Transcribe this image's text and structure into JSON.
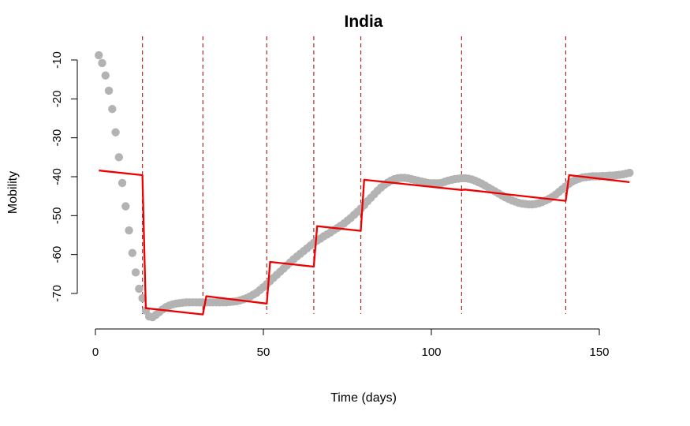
{
  "chart_data": {
    "type": "scatter",
    "title": "India",
    "xlabel": "Time (days)",
    "ylabel": "Mobility",
    "xlim": [
      0,
      150
    ],
    "ylim": [
      -75,
      -10
    ],
    "xticks": [
      0,
      50,
      100,
      150
    ],
    "yticks": [
      -70,
      -60,
      -50,
      -40,
      -30,
      -20,
      -10
    ],
    "colors": {
      "points": "#b3b3b3",
      "fit": "#ee0000",
      "breakpoints": "#a52a2a"
    },
    "breakpoints": [
      14,
      32,
      51,
      65,
      79,
      109,
      140
    ],
    "series": [
      {
        "type": "scatter",
        "x": [
          1,
          2,
          3,
          4,
          5,
          6,
          7,
          8,
          9,
          10,
          11,
          12,
          13,
          14,
          15,
          16,
          17,
          18,
          19,
          20,
          21,
          22,
          23,
          24,
          25,
          26,
          27,
          28,
          29,
          30,
          31,
          32,
          33,
          34,
          35,
          36,
          37,
          38,
          39,
          40,
          41,
          42,
          43,
          44,
          45,
          46,
          47,
          48,
          49,
          50,
          51,
          52,
          53,
          54,
          55,
          56,
          57,
          58,
          59,
          60,
          61,
          62,
          63,
          64,
          65,
          66,
          67,
          68,
          69,
          70,
          71,
          72,
          73,
          74,
          75,
          76,
          77,
          78,
          79,
          80,
          81,
          82,
          83,
          84,
          85,
          86,
          87,
          88,
          89,
          90,
          91,
          92,
          93,
          94,
          95,
          96,
          97,
          98,
          99,
          100,
          101,
          102,
          103,
          104,
          105,
          106,
          107,
          108,
          109,
          110,
          111,
          112,
          113,
          114,
          115,
          116,
          117,
          118,
          119,
          120,
          121,
          122,
          123,
          124,
          125,
          126,
          127,
          128,
          129,
          130,
          131,
          132,
          133,
          134,
          135,
          136,
          137,
          138,
          139,
          140,
          141,
          142,
          143,
          144,
          145,
          146,
          147,
          148,
          149,
          150,
          151,
          152,
          153,
          154,
          155,
          156,
          157,
          158,
          159
        ],
        "y": [
          -8.8,
          -10.8,
          -14,
          -17.9,
          -22.6,
          -28.6,
          -35,
          -41.6,
          -47.6,
          -53.8,
          -59.6,
          -64.6,
          -68.8,
          -71.2,
          -74.4,
          -75.9,
          -76.1,
          -75.5,
          -74.8,
          -74.1,
          -73.5,
          -73.1,
          -72.8,
          -72.6,
          -72.5,
          -72.4,
          -72.3,
          -72.3,
          -72.3,
          -72.3,
          -72.3,
          -72.3,
          -72.3,
          -72.3,
          -72.3,
          -72.3,
          -72.3,
          -72.3,
          -72.3,
          -72.2,
          -72.1,
          -72,
          -71.8,
          -71.5,
          -71.2,
          -70.8,
          -70.3,
          -69.8,
          -69.1,
          -68.4,
          -67.6,
          -66.8,
          -66,
          -65.2,
          -64.4,
          -63.6,
          -62.8,
          -62,
          -61.2,
          -60.5,
          -59.8,
          -59.1,
          -58.4,
          -57.7,
          -57,
          -56.4,
          -55.9,
          -55.3,
          -54.8,
          -54.3,
          -53.7,
          -53.2,
          -52.6,
          -52,
          -51.3,
          -50.6,
          -49.8,
          -49,
          -48.2,
          -47.3,
          -46.3,
          -45.4,
          -44.5,
          -43.6,
          -42.8,
          -42.1,
          -41.5,
          -41,
          -40.6,
          -40.4,
          -40.3,
          -40.3,
          -40.4,
          -40.6,
          -40.8,
          -41,
          -41.2,
          -41.4,
          -41.6,
          -41.7,
          -41.7,
          -41.7,
          -41.6,
          -41.3,
          -41,
          -40.8,
          -40.6,
          -40.5,
          -40.4,
          -40.4,
          -40.5,
          -40.7,
          -41,
          -41.4,
          -41.8,
          -42.3,
          -42.8,
          -43.3,
          -43.8,
          -44.3,
          -44.8,
          -45.3,
          -45.7,
          -46.1,
          -46.4,
          -46.7,
          -46.9,
          -47,
          -47.1,
          -47.1,
          -47,
          -46.8,
          -46.5,
          -46.1,
          -45.7,
          -45.2,
          -44.6,
          -43.9,
          -43.2,
          -42.5,
          -41.8,
          -41.2,
          -40.8,
          -40.5,
          -40.2,
          -40.1,
          -40,
          -39.9,
          -39.9,
          -39.9,
          -39.8,
          -39.8,
          -39.7,
          -39.7,
          -39.6,
          -39.5,
          -39.4,
          -39.2,
          -39
        ]
      },
      {
        "type": "segments",
        "segments": [
          {
            "x": [
              1,
              14
            ],
            "y": [
              -38.4,
              -39.6
            ]
          },
          {
            "x": [
              15,
              32
            ],
            "y": [
              -73.8,
              -75.4
            ]
          },
          {
            "x": [
              33,
              51
            ],
            "y": [
              -70.7,
              -72.6
            ]
          },
          {
            "x": [
              52,
              65
            ],
            "y": [
              -61.9,
              -63.1
            ]
          },
          {
            "x": [
              66,
              79
            ],
            "y": [
              -52.7,
              -53.9
            ]
          },
          {
            "x": [
              80,
              109
            ],
            "y": [
              -40.8,
              -43.4
            ]
          },
          {
            "x": [
              110,
              140
            ],
            "y": [
              -43.3,
              -46.2
            ]
          },
          {
            "x": [
              141,
              159
            ],
            "y": [
              -39.6,
              -41.4
            ]
          }
        ]
      }
    ]
  }
}
